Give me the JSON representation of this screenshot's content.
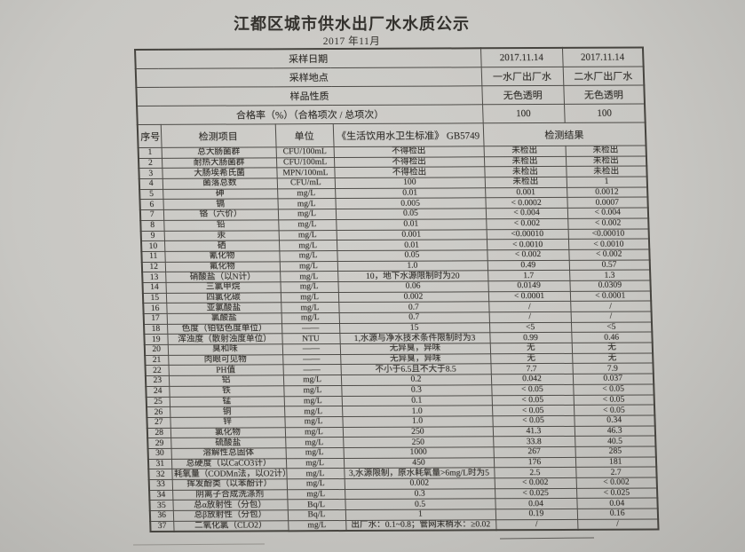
{
  "colors": {
    "paper": "#c8c7c3",
    "ink": "#34322e",
    "line": "#4d4b47"
  },
  "page": {
    "title": "江都区城市供水出厂水水质公示",
    "subtitle": "2017 年11月"
  },
  "info_rows": [
    {
      "label": "采样日期",
      "plant1": "2017.11.14",
      "plant2": "2017.11.14"
    },
    {
      "label": "采样地点",
      "plant1": "一水厂出厂水",
      "plant2": "二水厂出厂水"
    },
    {
      "label": "样品性质",
      "plant1": "无色透明",
      "plant2": "无色透明"
    },
    {
      "label": "合格率（%）（合格项次 / 总项次）",
      "plant1": "100",
      "plant2": "100"
    }
  ],
  "columns": {
    "index": "序号",
    "item": "检测项目",
    "unit": "单位",
    "standard": "《生活饮用水卫生标准》 GB5749",
    "result": "检测结果"
  },
  "rows": [
    {
      "no": "1",
      "item": "总大肠菌群",
      "unit": "CFU/100mL",
      "standard": "不得检出",
      "result1": "未检出",
      "result2": "未检出"
    },
    {
      "no": "2",
      "item": "耐热大肠菌群",
      "unit": "CFU/100mL",
      "standard": "不得检出",
      "result1": "未检出",
      "result2": "未检出"
    },
    {
      "no": "3",
      "item": "大肠埃希氏菌",
      "unit": "MPN/100mL",
      "standard": "不得检出",
      "result1": "未检出",
      "result2": "未检出"
    },
    {
      "no": "4",
      "item": "菌落总数",
      "unit": "CFU/mL",
      "standard": "100",
      "result1": "未检出",
      "result2": "1"
    },
    {
      "no": "5",
      "item": "砷",
      "unit": "mg/L",
      "standard": "0.01",
      "result1": "0.001",
      "result2": "0.0012"
    },
    {
      "no": "6",
      "item": "镉",
      "unit": "mg/L",
      "standard": "0.005",
      "result1": "< 0.0002",
      "result2": "0.0007"
    },
    {
      "no": "7",
      "item": "铬（六价）",
      "unit": "mg/L",
      "standard": "0.05",
      "result1": "< 0.004",
      "result2": "< 0.004"
    },
    {
      "no": "8",
      "item": "铅",
      "unit": "mg/L",
      "standard": "0.01",
      "result1": "< 0.002",
      "result2": "< 0.002"
    },
    {
      "no": "9",
      "item": "汞",
      "unit": "mg/L",
      "standard": "0.001",
      "result1": "<0.00010",
      "result2": "<0.00010"
    },
    {
      "no": "10",
      "item": "硒",
      "unit": "mg/L",
      "standard": "0.01",
      "result1": "< 0.0010",
      "result2": "< 0.0010"
    },
    {
      "no": "11",
      "item": "氰化物",
      "unit": "mg/L",
      "standard": "0.05",
      "result1": "< 0.002",
      "result2": "< 0.002"
    },
    {
      "no": "12",
      "item": "氟化物",
      "unit": "mg/L",
      "standard": "1.0",
      "result1": "0.49",
      "result2": "0.57"
    },
    {
      "no": "13",
      "item": "硝酸盐（以N计）",
      "unit": "mg/L",
      "standard": "10，地下水源限制时为20",
      "result1": "1.7",
      "result2": "1.3"
    },
    {
      "no": "14",
      "item": "三氯甲烷",
      "unit": "mg/L",
      "standard": "0.06",
      "result1": "0.0149",
      "result2": "0.0309"
    },
    {
      "no": "15",
      "item": "四氯化碳",
      "unit": "mg/L",
      "standard": "0.002",
      "result1": "< 0.0001",
      "result2": "< 0.0001"
    },
    {
      "no": "16",
      "item": "亚氯酸盐",
      "unit": "mg/L",
      "standard": "0.7",
      "result1": "/",
      "result2": "/"
    },
    {
      "no": "17",
      "item": "氯酸盐",
      "unit": "mg/L",
      "standard": "0.7",
      "result1": "/",
      "result2": "/"
    },
    {
      "no": "18",
      "item": "色度（铂钴色度单位）",
      "unit": "——",
      "standard": "15",
      "result1": "<5",
      "result2": "<5"
    },
    {
      "no": "19",
      "item": "浑浊度（散射浊度单位）",
      "unit": "NTU",
      "standard": "1,水源与净水技术条件限制时为3",
      "result1": "0.99",
      "result2": "0.46"
    },
    {
      "no": "20",
      "item": "臭和味",
      "unit": "——",
      "standard": "无异臭，异味",
      "result1": "无",
      "result2": "无"
    },
    {
      "no": "21",
      "item": "肉眼可见物",
      "unit": "——",
      "standard": "无异臭，异味",
      "result1": "无",
      "result2": "无"
    },
    {
      "no": "22",
      "item": "PH值",
      "unit": "——",
      "standard": "不小于6.5且不大于8.5",
      "result1": "7.7",
      "result2": "7.9"
    },
    {
      "no": "23",
      "item": "铝",
      "unit": "mg/L",
      "standard": "0.2",
      "result1": "0.042",
      "result2": "0.037"
    },
    {
      "no": "24",
      "item": "铁",
      "unit": "mg/L",
      "standard": "0.3",
      "result1": "< 0.05",
      "result2": "< 0.05"
    },
    {
      "no": "25",
      "item": "锰",
      "unit": "mg/L",
      "standard": "0.1",
      "result1": "< 0.05",
      "result2": "< 0.05"
    },
    {
      "no": "26",
      "item": "铜",
      "unit": "mg/L",
      "standard": "1.0",
      "result1": "< 0.05",
      "result2": "< 0.05"
    },
    {
      "no": "27",
      "item": "锌",
      "unit": "mg/L",
      "standard": "1.0",
      "result1": "< 0.05",
      "result2": "0.34"
    },
    {
      "no": "28",
      "item": "氯化物",
      "unit": "mg/L",
      "standard": "250",
      "result1": "41.3",
      "result2": "46.3"
    },
    {
      "no": "29",
      "item": "硫酸盐",
      "unit": "mg/L",
      "standard": "250",
      "result1": "33.8",
      "result2": "40.5"
    },
    {
      "no": "30",
      "item": "溶解性总固体",
      "unit": "mg/L",
      "standard": "1000",
      "result1": "267",
      "result2": "285"
    },
    {
      "no": "31",
      "item": "总硬度（以CaCO3计）",
      "unit": "mg/L",
      "standard": "450",
      "result1": "176",
      "result2": "181"
    },
    {
      "no": "32",
      "item": "耗氧量（CODMn法，以O2计）",
      "unit": "mg/L",
      "standard": "3,水源限制，原水耗氧量>6mg/L时为5",
      "result1": "2.5",
      "result2": "2.7"
    },
    {
      "no": "33",
      "item": "挥发酚类（以苯酚计）",
      "unit": "mg/L",
      "standard": "0.002",
      "result1": "< 0.002",
      "result2": "< 0.002"
    },
    {
      "no": "34",
      "item": "阴离子合成洗涤剂",
      "unit": "mg/L",
      "standard": "0.3",
      "result1": "< 0.025",
      "result2": "< 0.025"
    },
    {
      "no": "35",
      "item": "总α放射性（分包）",
      "unit": "Bq/L",
      "standard": "0.5",
      "result1": "0.04",
      "result2": "0.04"
    },
    {
      "no": "36",
      "item": "总β放射性（分包）",
      "unit": "Bq/L",
      "standard": "1",
      "result1": "0.19",
      "result2": "0.16"
    },
    {
      "no": "37",
      "item": "二氧化氯（CLO2）",
      "unit": "mg/L",
      "standard": "出厂水：0.1~0.8；管网末梢水：≥0.02",
      "result1": "/",
      "result2": "/"
    }
  ]
}
